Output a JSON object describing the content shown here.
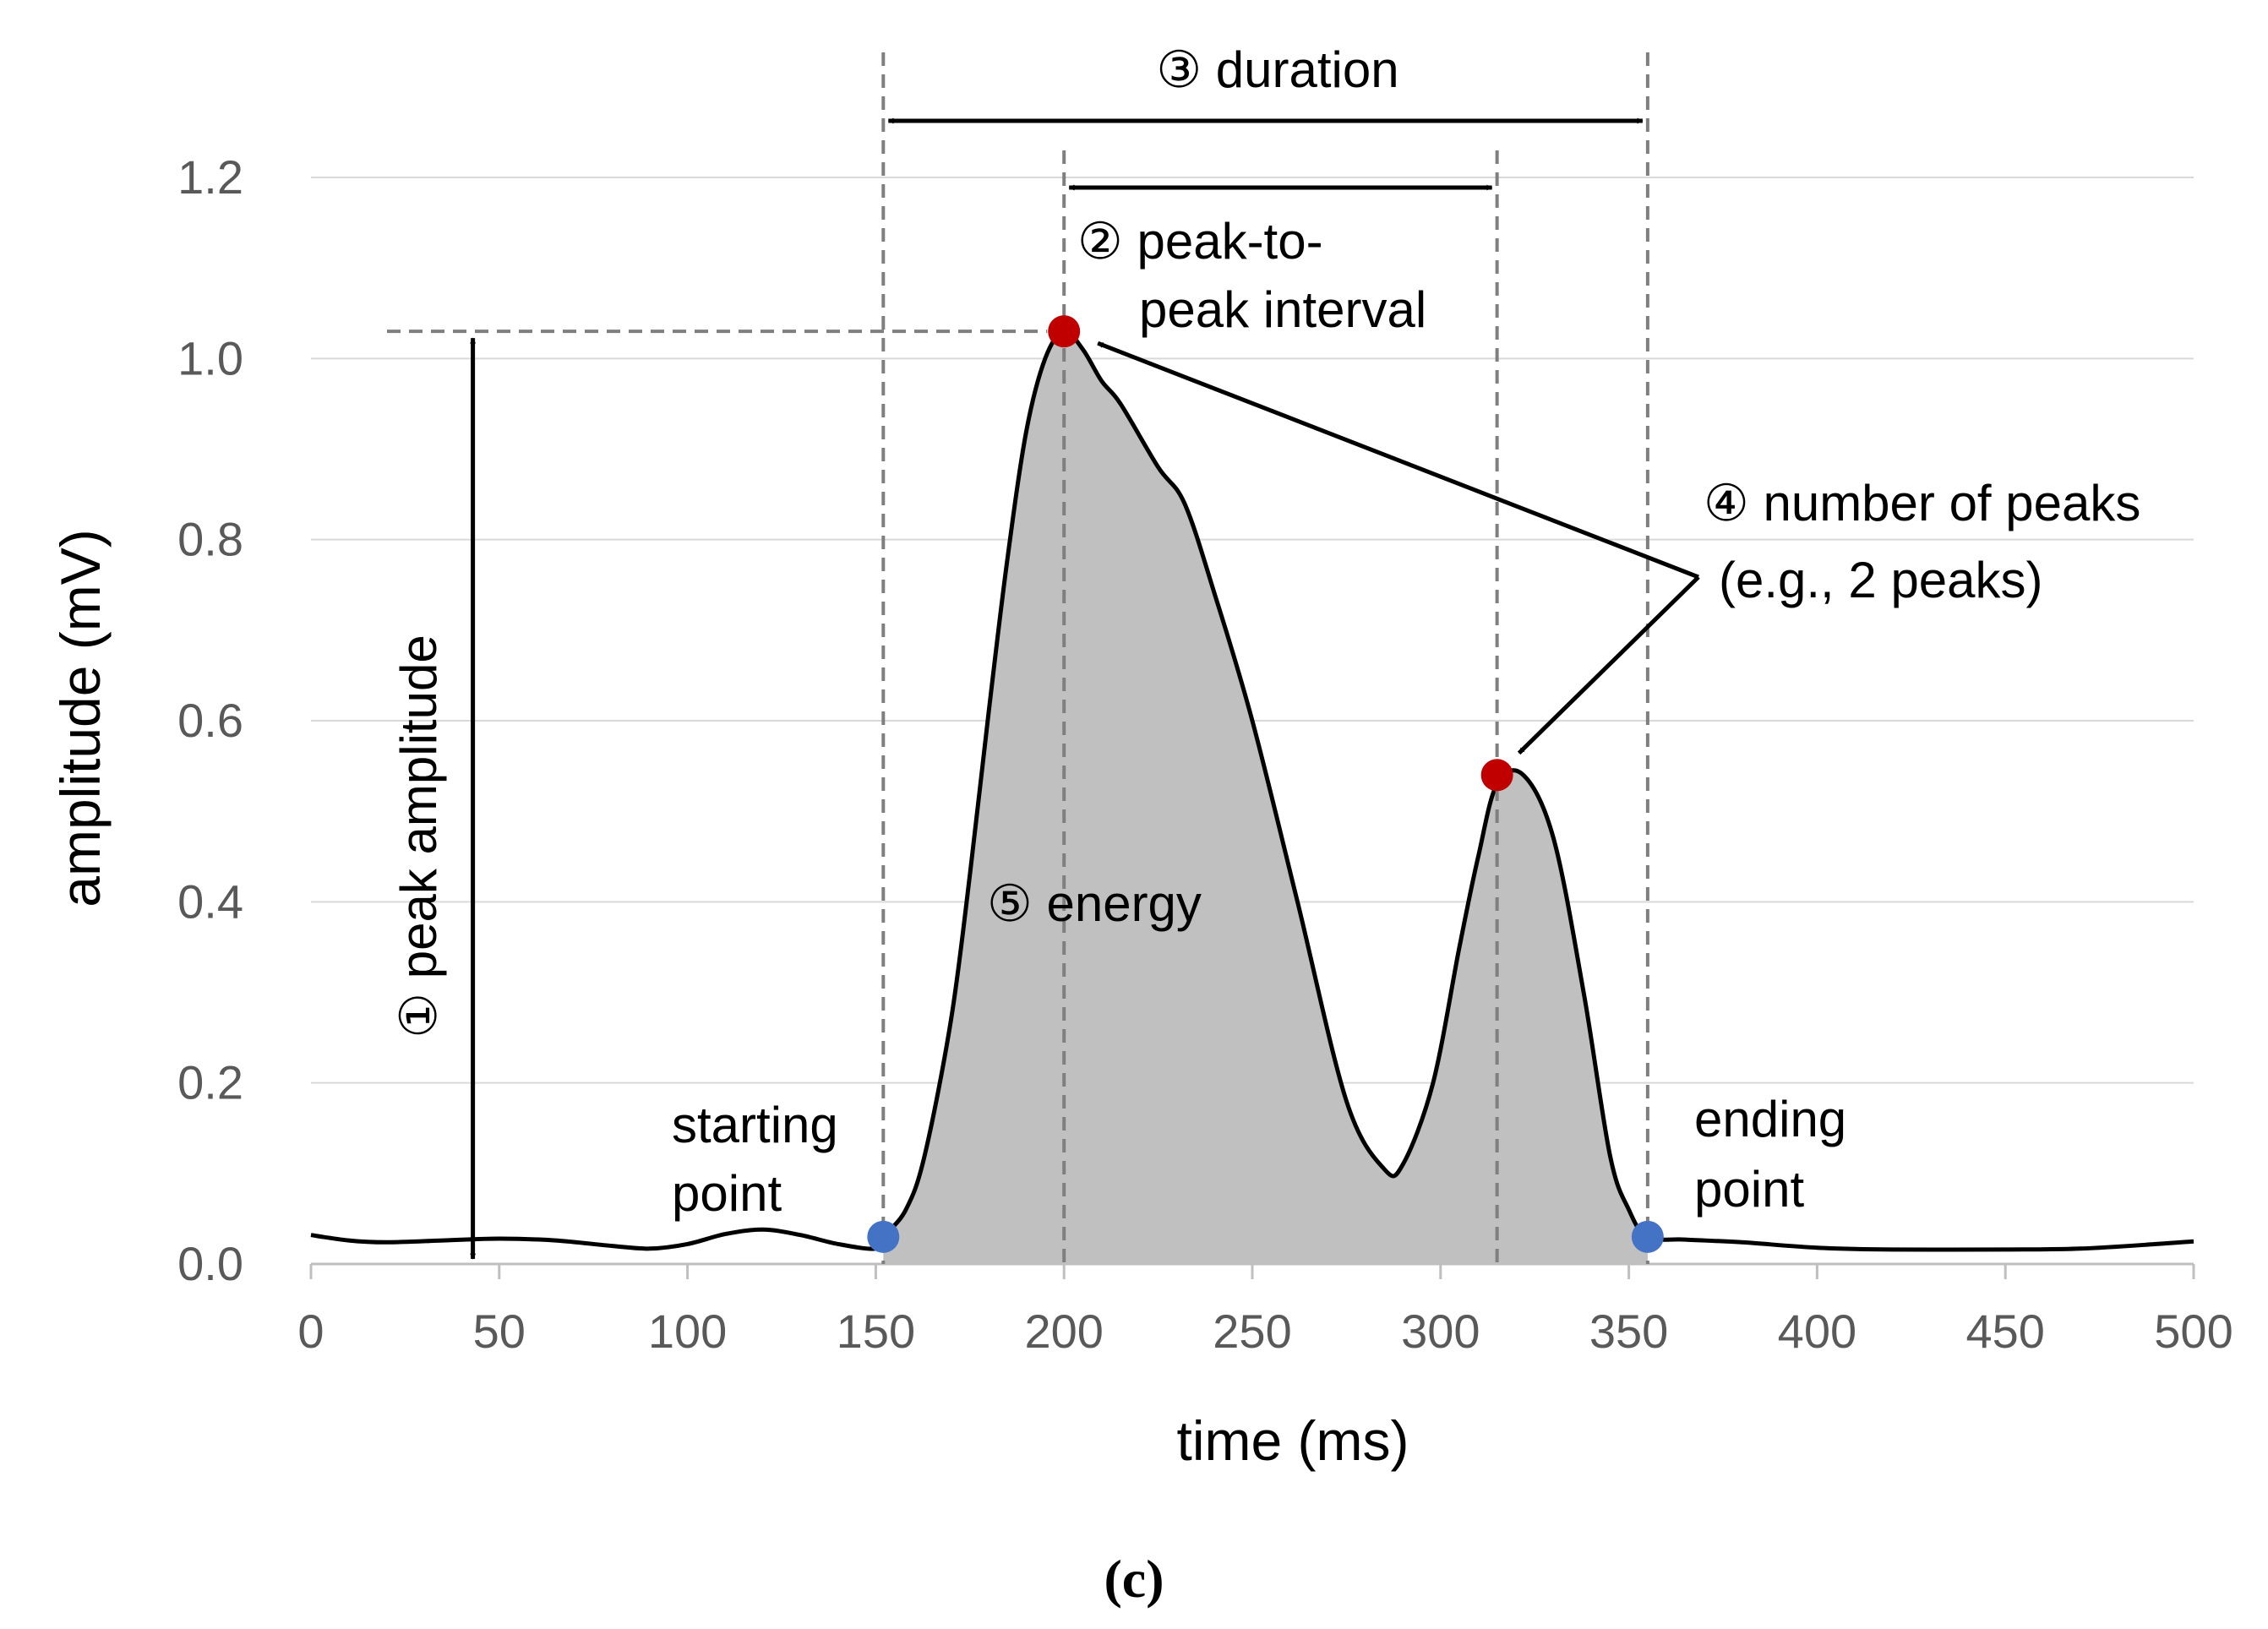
{
  "chart_data": {
    "type": "area",
    "title": "",
    "xlabel": "time (ms)",
    "ylabel": "amplitude (mV)",
    "xlim": [
      0,
      500
    ],
    "ylim": [
      0,
      1.2
    ],
    "x_ticks": [
      "0",
      "50",
      "100",
      "150",
      "200",
      "250",
      "300",
      "350",
      "400",
      "450",
      "500"
    ],
    "y_ticks": [
      "0.0",
      "0.2",
      "0.4",
      "0.6",
      "0.8",
      "1.0",
      "1.2"
    ],
    "grid": true,
    "series": [
      {
        "name": "signal",
        "color": "#000000",
        "fill": "#c0c0c0",
        "fill_range": [
          152,
          355
        ],
        "x": [
          0,
          10,
          20,
          35,
          50,
          65,
          80,
          90,
          100,
          110,
          120,
          130,
          140,
          150,
          152,
          158,
          163,
          170,
          175,
          180,
          185,
          190,
          195,
          200,
          205,
          210,
          215,
          225,
          232,
          240,
          250,
          262,
          275,
          285,
          290,
          298,
          305,
          310,
          315,
          322,
          330,
          338,
          345,
          350,
          355,
          365,
          380,
          400,
          420,
          450,
          470,
          490,
          500
        ],
        "y": [
          0.032,
          0.026,
          0.024,
          0.026,
          0.028,
          0.026,
          0.02,
          0.017,
          0.022,
          0.033,
          0.038,
          0.032,
          0.022,
          0.017,
          0.03,
          0.06,
          0.12,
          0.27,
          0.43,
          0.61,
          0.78,
          0.92,
          1.0,
          1.03,
          1.01,
          0.975,
          0.95,
          0.88,
          0.84,
          0.74,
          0.6,
          0.4,
          0.18,
          0.105,
          0.11,
          0.2,
          0.35,
          0.45,
          0.53,
          0.54,
          0.47,
          0.3,
          0.12,
          0.06,
          0.03,
          0.027,
          0.024,
          0.018,
          0.016,
          0.016,
          0.017,
          0.022,
          0.025
        ]
      }
    ],
    "markers": [
      {
        "name": "starting-point",
        "x": 152,
        "y": 0.03,
        "color": "#4472c4"
      },
      {
        "name": "ending-point",
        "x": 355,
        "y": 0.03,
        "color": "#4472c4"
      },
      {
        "name": "peak-1",
        "x": 200,
        "y": 1.03,
        "color": "#c00000"
      },
      {
        "name": "peak-2",
        "x": 315,
        "y": 0.54,
        "color": "#c00000"
      }
    ],
    "reference_lines": {
      "vertical_x": [
        152,
        200,
        315,
        355
      ],
      "horizontal_y": [
        1.03
      ]
    },
    "annotations": {
      "duration": "③ duration",
      "peak_to_peak_line1": "② peak-to-",
      "peak_to_peak_line2": "peak interval",
      "number_of_peaks_line1": "④ number of peaks",
      "number_of_peaks_line2": "(e.g., 2 peaks)",
      "peak_amplitude": "① peak amplitude",
      "energy": "⑤ energy",
      "starting_line1": "starting",
      "starting_line2": "point",
      "ending_line1": "ending",
      "ending_line2": "point"
    },
    "panel_label": "(c)"
  }
}
